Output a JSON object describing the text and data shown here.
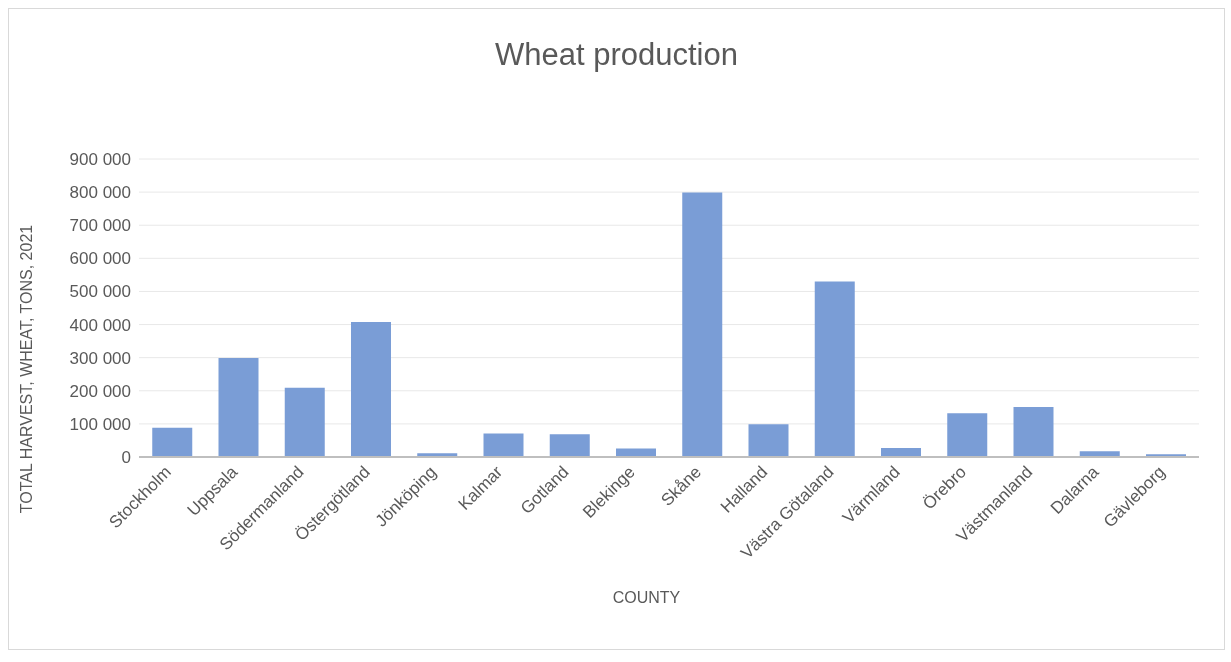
{
  "chart_data": {
    "type": "bar",
    "title": "Wheat production",
    "xlabel": "COUNTY",
    "ylabel": "TOTAL HARVEST, WHEAT, TONS, 2021",
    "categories": [
      "Stockholm",
      "Uppsala",
      "Södermanland",
      "Östergötland",
      "Jönköping",
      "Kalmar",
      "Gotland",
      "Blekinge",
      "Skåne",
      "Halland",
      "Västra Götaland",
      "Värmland",
      "Örebro",
      "Västmanland",
      "Dalarna",
      "Gävleborg"
    ],
    "values": [
      88000,
      299000,
      209000,
      408000,
      11000,
      71000,
      69000,
      26000,
      799000,
      99000,
      530000,
      27000,
      132000,
      151000,
      17000,
      8000
    ],
    "color": "#7a9dd6",
    "ylim": [
      0,
      900000
    ],
    "yticks": [
      {
        "value": 0,
        "label": "0"
      },
      {
        "value": 100000,
        "label": "100 000"
      },
      {
        "value": 200000,
        "label": "200 000"
      },
      {
        "value": 300000,
        "label": "300 000"
      },
      {
        "value": 400000,
        "label": "400 000"
      },
      {
        "value": 500000,
        "label": "500 000"
      },
      {
        "value": 600000,
        "label": "600 000"
      },
      {
        "value": 700000,
        "label": "700 000"
      },
      {
        "value": 800000,
        "label": "800 000"
      },
      {
        "value": 900000,
        "label": "900 000"
      }
    ],
    "grid": "y"
  }
}
